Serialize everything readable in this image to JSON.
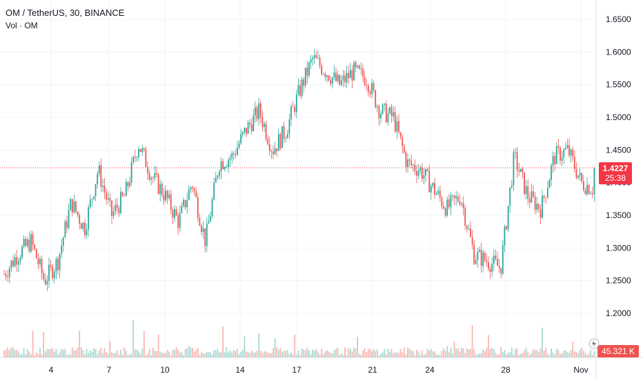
{
  "header": {
    "symbol_title": "OM / TetherUS, 30, BINANCE",
    "volume_label": "Vol · OM"
  },
  "colors": {
    "up": "#26a69a",
    "down": "#ef5350",
    "last_price": "#f23645",
    "grid": "#f0f3fa",
    "axis_text": "#131722",
    "volume_up": "#a8d8d0",
    "volume_down": "#f7b7b4"
  },
  "chart_data": {
    "type": "candlestick",
    "symbol": "OM / TetherUS",
    "interval": "30",
    "exchange": "BINANCE",
    "x_tick_labels": [
      "4",
      "7",
      "10",
      "14",
      "17",
      "21",
      "24",
      "28",
      "Nov"
    ],
    "y_tick_labels": [
      "1.2000",
      "1.2500",
      "1.3000",
      "1.3500",
      "1.4000",
      "1.4500",
      "1.5000",
      "1.5500",
      "1.6000",
      "1.6500"
    ],
    "y_ticks": [
      1.2,
      1.25,
      1.3,
      1.35,
      1.4,
      1.45,
      1.5,
      1.55,
      1.6,
      1.65
    ],
    "ylim": [
      1.16,
      1.66
    ],
    "grid": true,
    "last_price": 1.4227,
    "last_price_label": "1.4227",
    "countdown_label": "25:38",
    "volume_last_label": "45.321 K",
    "price_path": [
      [
        1.26,
        1.21
      ],
      [
        1.29,
        1.28
      ],
      [
        1.31,
        1.26
      ],
      [
        1.25,
        1.22
      ],
      [
        1.28,
        1.26
      ],
      [
        1.37,
        1.38
      ],
      [
        1.33,
        1.35
      ],
      [
        1.42,
        1.4
      ],
      [
        1.35,
        1.39
      ],
      [
        1.38,
        1.33
      ],
      [
        1.46,
        1.43
      ],
      [
        1.41,
        1.38
      ],
      [
        1.38,
        1.37
      ],
      [
        1.34,
        1.33
      ],
      [
        1.4,
        1.38
      ],
      [
        1.31,
        1.34
      ],
      [
        1.43,
        1.4
      ],
      [
        1.44,
        1.45
      ],
      [
        1.48,
        1.53
      ],
      [
        1.51,
        1.46
      ],
      [
        1.45,
        1.43
      ],
      [
        1.48,
        1.51
      ],
      [
        1.54,
        1.6
      ],
      [
        1.59,
        1.56
      ],
      [
        1.57,
        1.52
      ],
      [
        1.55,
        1.58
      ],
      [
        1.57,
        1.55
      ],
      [
        1.56,
        1.51
      ],
      [
        1.51,
        1.5
      ],
      [
        1.5,
        1.47
      ],
      [
        1.43,
        1.44
      ],
      [
        1.42,
        1.44
      ],
      [
        1.39,
        1.41
      ],
      [
        1.36,
        1.4
      ],
      [
        1.38,
        1.28
      ],
      [
        1.29,
        1.26
      ],
      [
        1.28,
        1.27
      ],
      [
        1.27,
        1.35
      ],
      [
        1.44,
        1.4
      ],
      [
        1.38,
        1.37
      ],
      [
        1.36,
        1.39
      ],
      [
        1.44,
        1.47
      ],
      [
        1.45,
        1.42
      ],
      [
        1.4,
        1.38
      ],
      [
        1.39,
        1.42
      ]
    ]
  }
}
